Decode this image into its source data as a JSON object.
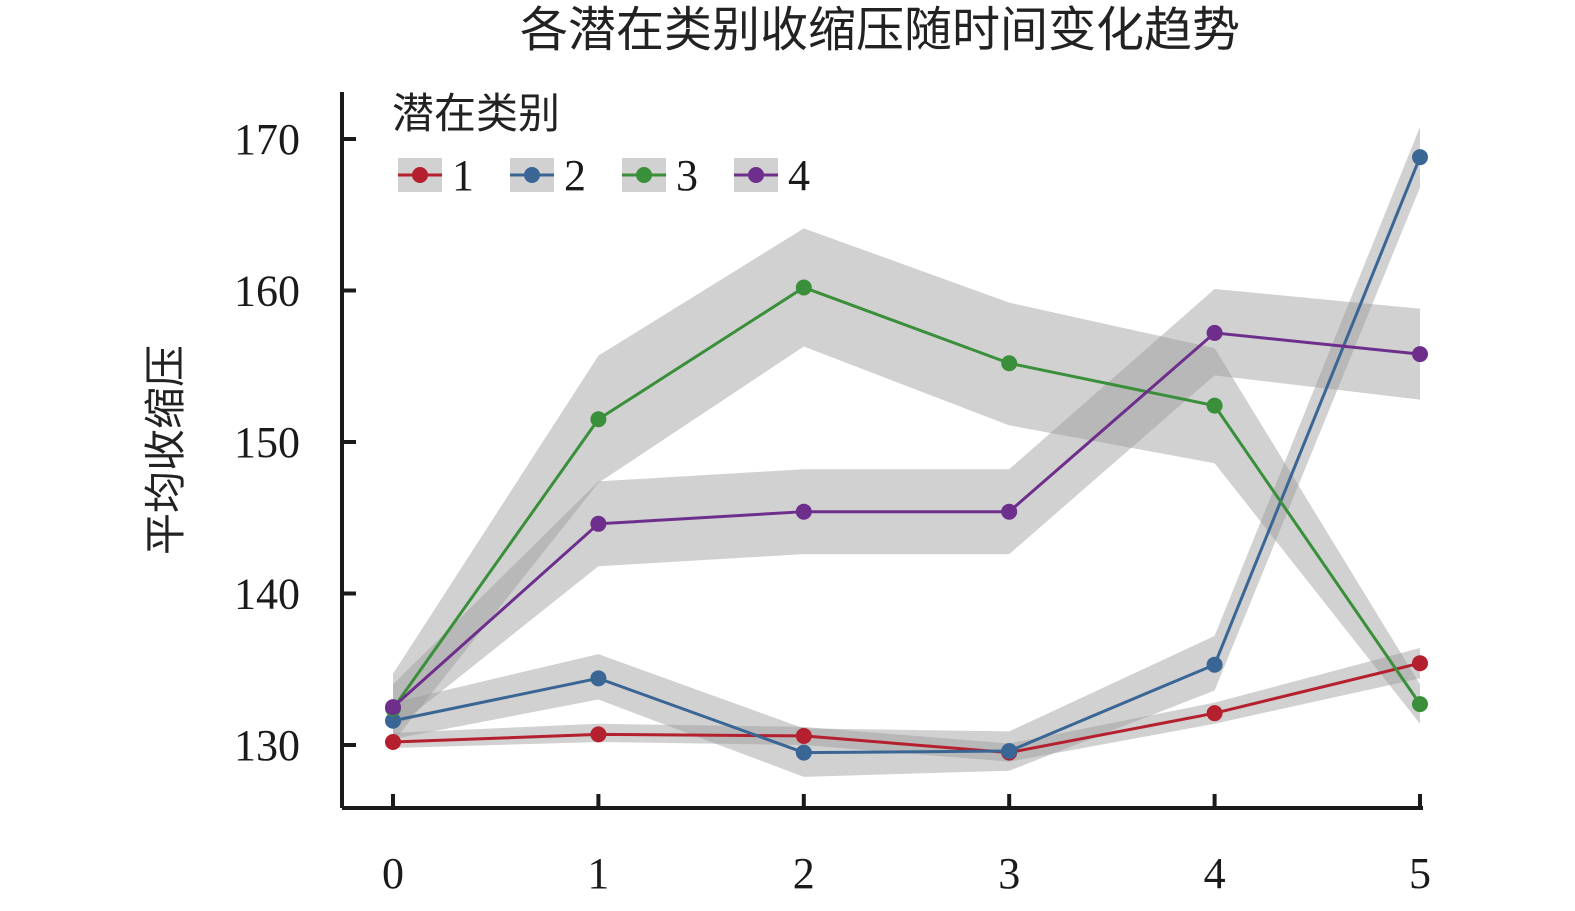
{
  "chart_data": {
    "type": "line",
    "title": "各潜在类别收缩压随时间变化趋势",
    "xlabel": "",
    "ylabel": "平均收缩压",
    "x": [
      0,
      1,
      2,
      3,
      4,
      5
    ],
    "xlim": [
      -0.25,
      5.05
    ],
    "ylim": [
      124,
      173
    ],
    "yticks": [
      130,
      140,
      150,
      160,
      170
    ],
    "grid": false,
    "legend": {
      "title": "潜在类别",
      "placement": "top-left",
      "orientation": "horizontal"
    },
    "series": [
      {
        "name": "1",
        "color": "#b5202e",
        "values": [
          130.2,
          130.7,
          130.6,
          129.5,
          132.1,
          135.4
        ],
        "lower": [
          129.8,
          130.2,
          130.0,
          128.9,
          131.4,
          134.4
        ],
        "upper": [
          130.8,
          131.4,
          131.2,
          130.1,
          132.8,
          136.4
        ]
      },
      {
        "name": "2",
        "color": "#3a6696",
        "values": [
          131.6,
          134.4,
          129.5,
          129.6,
          135.3,
          168.8
        ],
        "lower": [
          130.4,
          133.0,
          127.9,
          128.3,
          133.6,
          166.8
        ],
        "upper": [
          132.8,
          136.0,
          131.1,
          130.9,
          137.2,
          170.8
        ]
      },
      {
        "name": "3",
        "color": "#3a8f3a",
        "values": [
          132.4,
          151.5,
          160.2,
          155.2,
          152.4,
          132.7
        ],
        "lower": [
          130.2,
          147.3,
          156.3,
          151.1,
          148.6,
          131.4
        ],
        "upper": [
          134.7,
          155.7,
          164.1,
          159.2,
          156.2,
          134.0
        ]
      },
      {
        "name": "4",
        "color": "#6e2f8c",
        "values": [
          132.5,
          144.6,
          145.4,
          145.4,
          157.2,
          155.8
        ],
        "lower": [
          131.0,
          141.8,
          142.6,
          142.6,
          154.4,
          152.8
        ],
        "upper": [
          134.0,
          147.4,
          148.2,
          148.2,
          160.1,
          158.8
        ]
      }
    ]
  }
}
